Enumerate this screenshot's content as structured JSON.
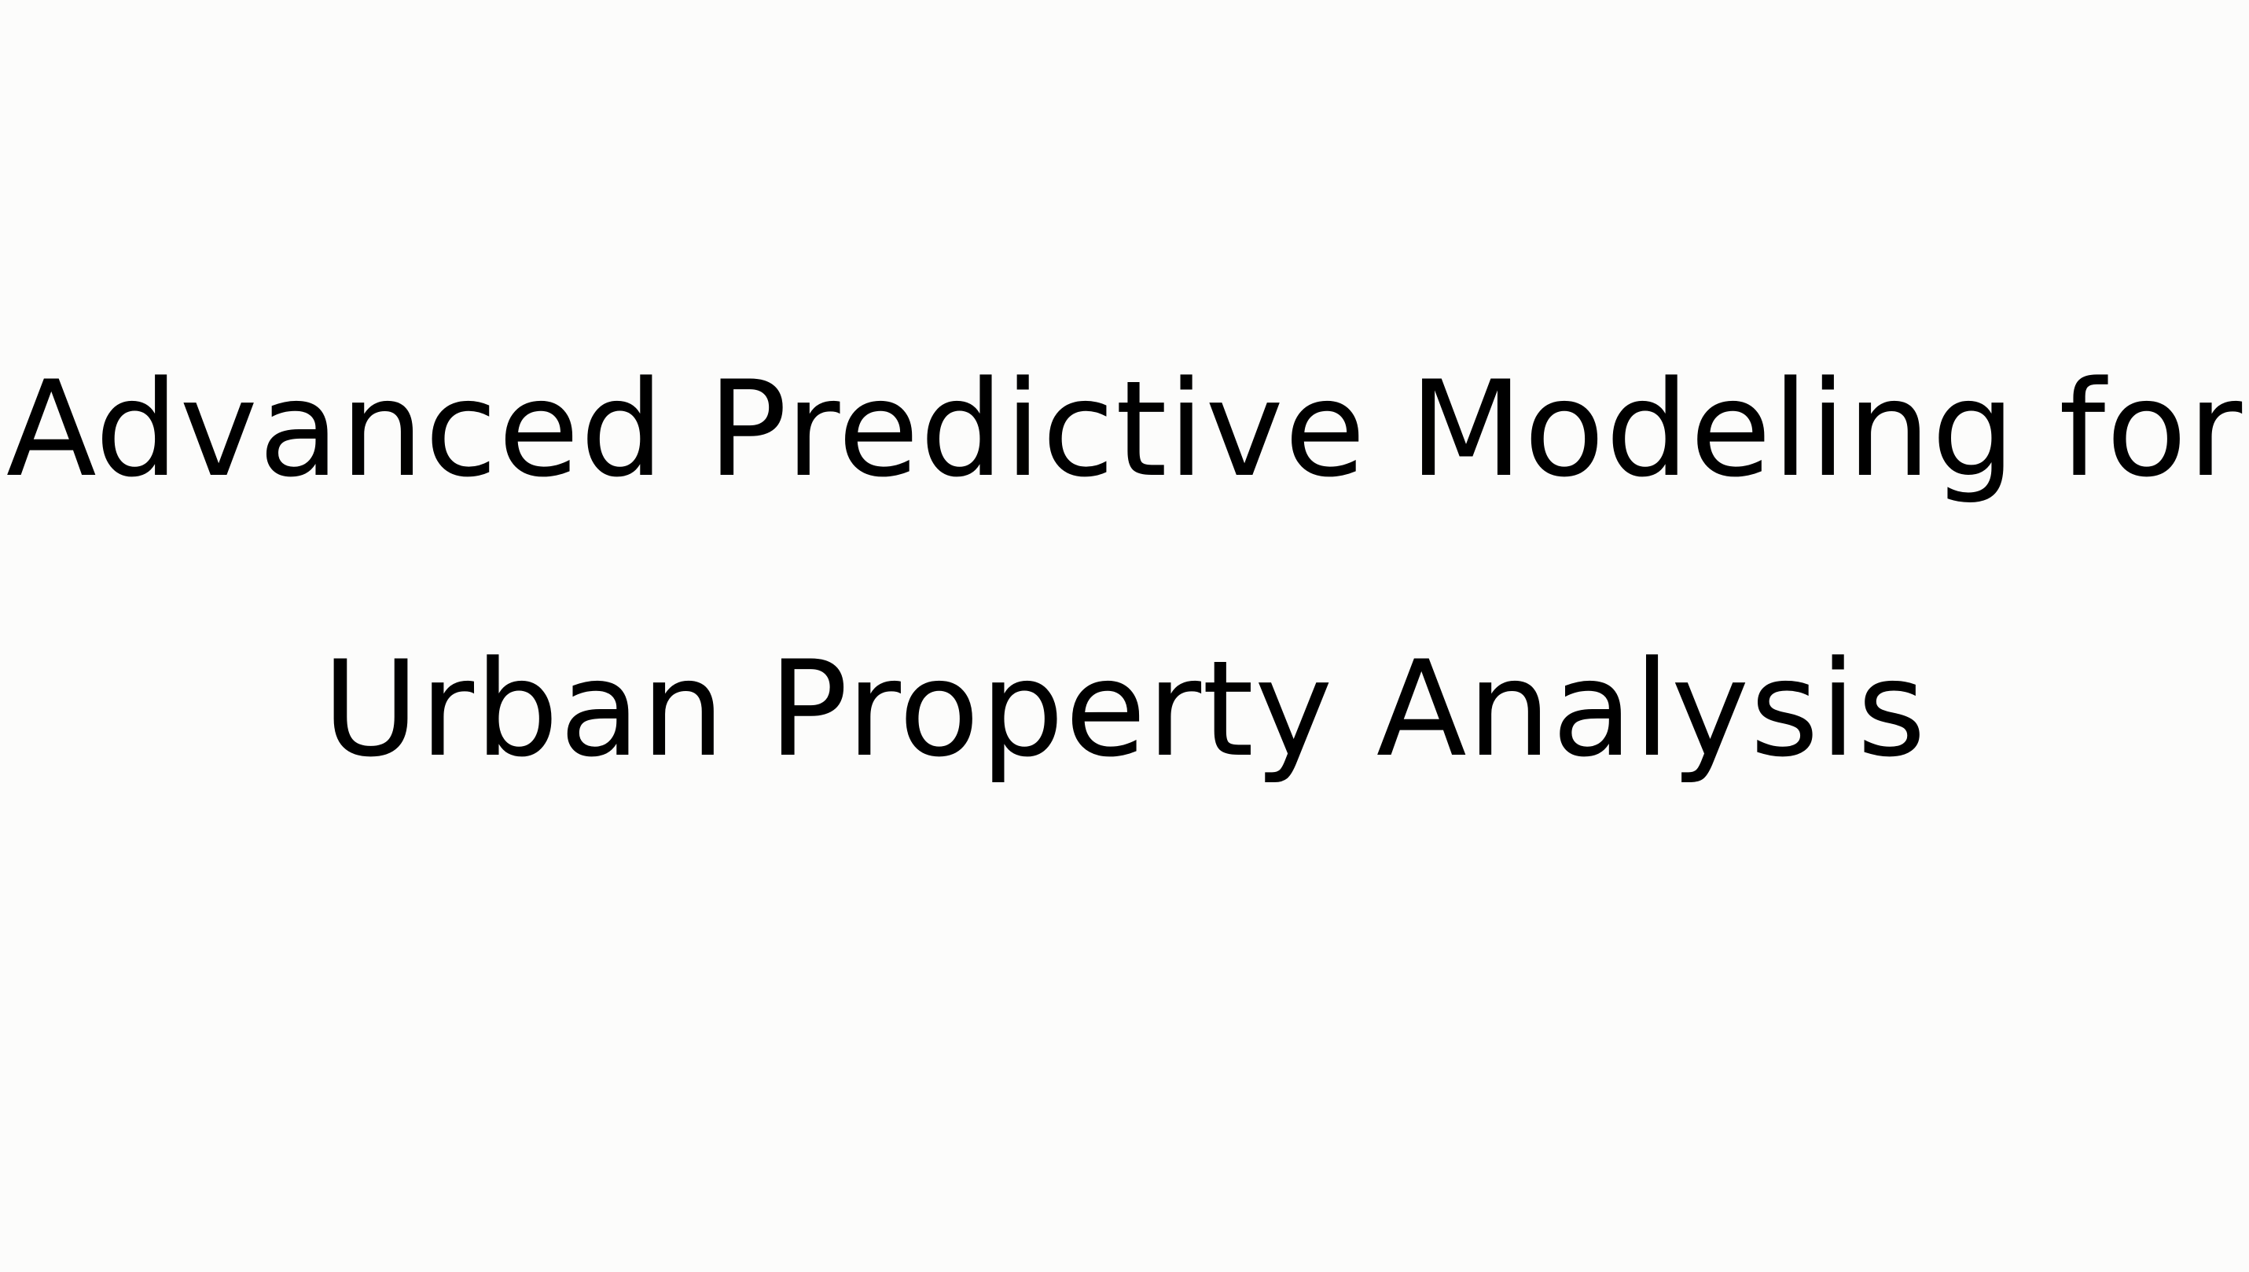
{
  "slide": {
    "title_line_1": "Advanced Predictive Modeling for",
    "title_line_2": "Urban Property Analysis",
    "background_color": "#fcfcfb",
    "text_color": "#000000"
  }
}
